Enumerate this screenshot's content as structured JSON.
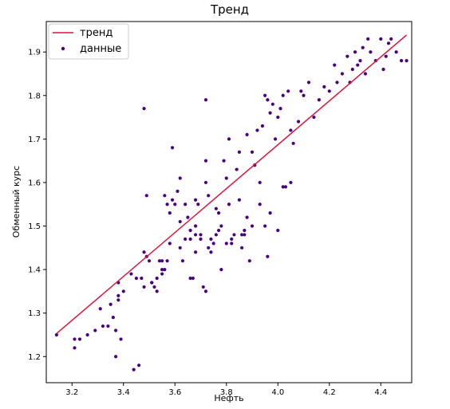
{
  "chart_data": {
    "type": "scatter",
    "title": "Тренд",
    "xlabel": "Нефть",
    "ylabel": "Обменный курс",
    "xlim": [
      3.1,
      4.52
    ],
    "ylim": [
      1.14,
      1.97
    ],
    "xticks": [
      "3.2",
      "3.4",
      "3.6",
      "3.8",
      "4.0",
      "4.2",
      "4.4"
    ],
    "yticks": [
      "1.2",
      "1.3",
      "1.4",
      "1.5",
      "1.6",
      "1.7",
      "1.8",
      "1.9"
    ],
    "legend_placement": "top-left",
    "grid": false,
    "colors": {
      "trend": "#dc143c",
      "points": "#4b0082"
    },
    "series": [
      {
        "name": "тренд",
        "kind": "line",
        "x": [
          3.14,
          4.5
        ],
        "y": [
          1.253,
          1.939
        ]
      },
      {
        "name": "данные",
        "kind": "scatter",
        "x": [
          3.14,
          3.21,
          3.21,
          3.23,
          3.26,
          3.29,
          3.31,
          3.32,
          3.34,
          3.35,
          3.36,
          3.37,
          3.37,
          3.38,
          3.38,
          3.38,
          3.39,
          3.4,
          3.43,
          3.44,
          3.45,
          3.46,
          3.47,
          3.48,
          3.48,
          3.49,
          3.49,
          3.5,
          3.51,
          3.52,
          3.53,
          3.54,
          3.55,
          3.55,
          3.56,
          3.56,
          3.57,
          3.58,
          3.58,
          3.59,
          3.6,
          3.61,
          3.62,
          3.63,
          3.64,
          3.65,
          3.66,
          3.67,
          3.68,
          3.68,
          3.69,
          3.7,
          3.71,
          3.72,
          3.72,
          3.73,
          3.74,
          3.75,
          3.76,
          3.76,
          3.77,
          3.78,
          3.79,
          3.8,
          3.81,
          3.82,
          3.83,
          3.84,
          3.85,
          3.86,
          3.87,
          3.88,
          3.89,
          3.9,
          3.91,
          3.92,
          3.93,
          3.94,
          3.95,
          3.96,
          3.97,
          3.98,
          3.99,
          4.0,
          4.01,
          4.02,
          4.03,
          4.04,
          4.05,
          4.06,
          4.08,
          4.09,
          4.1,
          4.12,
          4.14,
          4.16,
          4.18,
          4.2,
          4.22,
          4.23,
          4.25,
          4.27,
          4.28,
          4.29,
          4.3,
          4.31,
          4.32,
          4.33,
          4.34,
          4.35,
          4.36,
          4.38,
          4.4,
          4.41,
          4.42,
          4.43,
          4.44,
          4.46,
          4.48,
          4.5,
          3.72,
          3.48,
          3.59,
          3.72,
          3.81,
          3.93,
          3.96,
          4.02,
          4.05,
          3.64,
          3.77,
          3.68,
          3.86,
          3.97,
          3.53,
          3.55,
          3.62,
          3.7,
          3.85,
          3.9,
          3.74,
          3.66,
          3.88,
          3.78,
          3.95,
          4.0,
          3.68,
          3.82,
          3.8,
          3.87,
          3.57,
          3.51,
          3.73,
          3.62,
          3.66
        ],
        "y": [
          1.25,
          1.22,
          1.24,
          1.24,
          1.25,
          1.26,
          1.31,
          1.27,
          1.27,
          1.32,
          1.29,
          1.26,
          1.2,
          1.33,
          1.34,
          1.37,
          1.24,
          1.35,
          1.39,
          1.17,
          1.38,
          1.18,
          1.38,
          1.36,
          1.44,
          1.43,
          1.57,
          1.42,
          1.37,
          1.36,
          1.35,
          1.42,
          1.39,
          1.42,
          1.4,
          1.57,
          1.42,
          1.46,
          1.53,
          1.56,
          1.55,
          1.58,
          1.61,
          1.42,
          1.55,
          1.52,
          1.47,
          1.38,
          1.48,
          1.44,
          1.55,
          1.47,
          1.36,
          1.65,
          1.79,
          1.57,
          1.47,
          1.46,
          1.54,
          1.48,
          1.53,
          1.5,
          1.65,
          1.61,
          1.7,
          1.46,
          1.48,
          1.63,
          1.67,
          1.48,
          1.49,
          1.71,
          1.42,
          1.67,
          1.64,
          1.72,
          1.6,
          1.73,
          1.8,
          1.79,
          1.76,
          1.78,
          1.7,
          1.75,
          1.77,
          1.8,
          1.59,
          1.81,
          1.72,
          1.69,
          1.74,
          1.81,
          1.8,
          1.83,
          1.75,
          1.79,
          1.82,
          1.81,
          1.87,
          1.83,
          1.85,
          1.89,
          1.83,
          1.86,
          1.9,
          1.87,
          1.88,
          1.91,
          1.85,
          1.93,
          1.9,
          1.88,
          1.93,
          1.86,
          1.89,
          1.92,
          1.93,
          1.9,
          1.88,
          1.88,
          1.35,
          1.77,
          1.68,
          1.6,
          1.55,
          1.55,
          1.43,
          1.59,
          1.6,
          1.47,
          1.49,
          1.56,
          1.45,
          1.53,
          1.38,
          1.4,
          1.45,
          1.48,
          1.56,
          1.5,
          1.44,
          1.38,
          1.52,
          1.4,
          1.5,
          1.49,
          1.5,
          1.47,
          1.46,
          1.48,
          1.55,
          1.37,
          1.45,
          1.51,
          1.49
        ]
      }
    ]
  }
}
